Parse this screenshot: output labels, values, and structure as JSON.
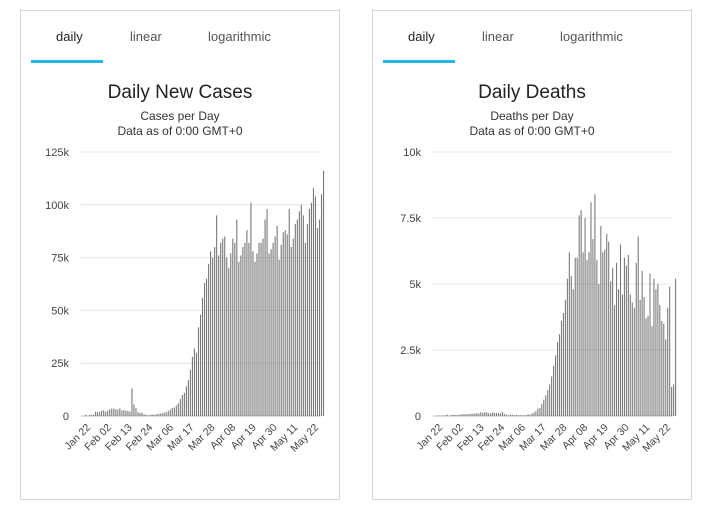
{
  "panels": [
    {
      "tabs": [
        "daily",
        "linear",
        "logarithmic"
      ],
      "active_tab": "daily",
      "accent_color": "#25b7e8",
      "chart_data": {
        "type": "bar",
        "title": "Daily New Cases",
        "subtitle": "Cases per Day",
        "subtitle2": "Data as of 0:00 GMT+0",
        "ylim": [
          0,
          125000
        ],
        "yticks": [
          0,
          25000,
          50000,
          75000,
          100000,
          125000
        ],
        "yticklabels": [
          "0",
          "25k",
          "50k",
          "75k",
          "100k",
          "125k"
        ],
        "xticklabels": [
          "Jan 22",
          "Feb 02",
          "Feb 13",
          "Feb 24",
          "Mar 06",
          "Mar 17",
          "Mar 28",
          "Apr 08",
          "Apr 19",
          "Apr 30",
          "May 11",
          "May 22"
        ],
        "bar_color": "#7a7a7a",
        "grid": true,
        "values": [
          580,
          100,
          600,
          500,
          700,
          2100,
          1800,
          2000,
          2500,
          2800,
          2000,
          2600,
          3100,
          3500,
          3500,
          3200,
          3000,
          3600,
          2600,
          2800,
          2500,
          2400,
          2100,
          13000,
          5500,
          3700,
          1800,
          1500,
          1600,
          800,
          600,
          300,
          500,
          800,
          500,
          800,
          900,
          1200,
          1300,
          1600,
          1800,
          2400,
          3000,
          3800,
          4000,
          5000,
          6000,
          8000,
          10000,
          11000,
          14000,
          17000,
          22000,
          28000,
          32000,
          30000,
          42000,
          48000,
          56000,
          63000,
          65000,
          72000,
          78000,
          75000,
          80000,
          95000,
          76000,
          82000,
          84000,
          85000,
          75000,
          70000,
          77000,
          84000,
          82000,
          93000,
          73000,
          76000,
          80000,
          82000,
          88000,
          82000,
          101000,
          78000,
          73000,
          77000,
          82000,
          82000,
          84000,
          93000,
          98000,
          77000,
          79000,
          82000,
          85000,
          90000,
          74000,
          81000,
          87000,
          88000,
          86000,
          98000,
          80000,
          84000,
          91000,
          93000,
          97000,
          100000,
          95000,
          82000,
          91000,
          98000,
          101000,
          108000,
          104000,
          89000,
          93000,
          105000,
          116000
        ]
      }
    },
    {
      "tabs": [
        "daily",
        "linear",
        "logarithmic"
      ],
      "active_tab": "daily",
      "accent_color": "#25b7e8",
      "chart_data": {
        "type": "bar",
        "title": "Daily Deaths",
        "subtitle": "Deaths per Day",
        "subtitle2": "Data as of 0:00 GMT+0",
        "ylim": [
          0,
          10000
        ],
        "yticks": [
          0,
          2500,
          5000,
          7500,
          10000
        ],
        "yticklabels": [
          "0",
          "2.5k",
          "5k",
          "7.5k",
          "10k"
        ],
        "xticklabels": [
          "Jan 22",
          "Feb 02",
          "Feb 13",
          "Feb 24",
          "Mar 06",
          "Mar 17",
          "Mar 28",
          "Apr 08",
          "Apr 19",
          "Apr 30",
          "May 11",
          "May 22"
        ],
        "bar_color": "#7a7a7a",
        "grid": true,
        "values": [
          17,
          8,
          16,
          14,
          26,
          49,
          2,
          38,
          42,
          46,
          43,
          45,
          57,
          64,
          66,
          73,
          73,
          86,
          89,
          97,
          108,
          97,
          146,
          121,
          143,
          142,
          105,
          98,
          136,
          115,
          118,
          109,
          97,
          150,
          71,
          52,
          29,
          44,
          47,
          35,
          42,
          31,
          38,
          31,
          30,
          29,
          70,
          51,
          88,
          130,
          180,
          275,
          310,
          450,
          620,
          780,
          980,
          1200,
          1500,
          1900,
          2300,
          2800,
          3100,
          3600,
          3900,
          4400,
          5200,
          6200,
          5300,
          4800,
          6000,
          6000,
          7600,
          7800,
          6200,
          7500,
          5900,
          6200,
          8100,
          6700,
          8400,
          5900,
          5000,
          7200,
          6200,
          6300,
          6900,
          6600,
          5100,
          5600,
          4200,
          5800,
          4800,
          6500,
          4600,
          6000,
          5700,
          6100,
          4600,
          4300,
          4100,
          5800,
          6800,
          4400,
          5500,
          4500,
          3700,
          3800,
          5400,
          3400,
          5200,
          4800,
          5000,
          4200,
          3600,
          3500,
          2900,
          4100,
          4900,
          1100,
          1200,
          5200
        ]
      }
    }
  ]
}
